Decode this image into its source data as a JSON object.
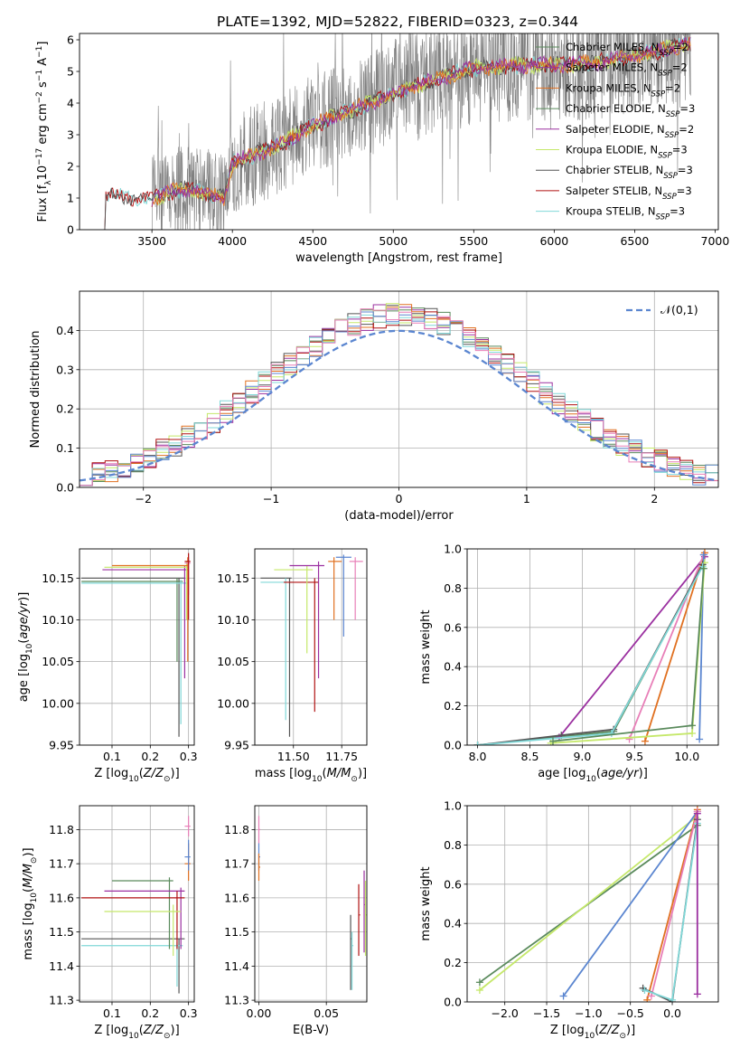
{
  "title": "PLATE=1392, MJD=52822, FIBERID=0323, z=0.344",
  "models": [
    {
      "name": "Chabrier MILES",
      "nssp": "2",
      "color": "#5a8a5c"
    },
    {
      "name": "Salpeter MILES",
      "nssp": "2",
      "color": "#9b30a0"
    },
    {
      "name": "Kroupa MILES",
      "nssp": "2",
      "color": "#e07020"
    },
    {
      "name": "Chabrier ELODIE",
      "nssp": "3",
      "color": "#5a8a5c"
    },
    {
      "name": "Salpeter ELODIE",
      "nssp": "2",
      "color": "#9b30a0"
    },
    {
      "name": "Kroupa ELODIE",
      "nssp": "3",
      "color": "#c5e86a"
    },
    {
      "name": "Chabrier STELIB",
      "nssp": "3",
      "color": "#555555"
    },
    {
      "name": "Salpeter STELIB",
      "nssp": "3",
      "color": "#b01010"
    },
    {
      "name": "Kroupa STELIB",
      "nssp": "3",
      "color": "#80d8d8"
    }
  ],
  "chart_data": [
    {
      "id": "spectrum",
      "type": "line",
      "xlabel": "wavelength [Angstrom, rest frame]",
      "ylabel": "Flux [f_λ 10^-17 erg cm^-2 s^-1 A^-1]",
      "xlim": [
        3050,
        7020
      ],
      "ylim": [
        0,
        6.2
      ],
      "xticks": [
        3500,
        4000,
        4500,
        5000,
        5500,
        6000,
        6500,
        7000
      ],
      "yticks": [
        0,
        1,
        2,
        3,
        4,
        5,
        6
      ],
      "data_color": "#808080",
      "continuum": [
        [
          3200,
          1.05
        ],
        [
          3500,
          1.0
        ],
        [
          3700,
          1.3
        ],
        [
          3950,
          1.0
        ],
        [
          4000,
          2.1
        ],
        [
          4300,
          2.7
        ],
        [
          4500,
          3.3
        ],
        [
          4800,
          3.9
        ],
        [
          5000,
          4.3
        ],
        [
          5300,
          4.8
        ],
        [
          5500,
          5.1
        ],
        [
          5800,
          5.2
        ],
        [
          6000,
          5.2
        ],
        [
          6300,
          5.3
        ],
        [
          6600,
          5.6
        ],
        [
          6850,
          5.9
        ]
      ]
    },
    {
      "id": "residuals",
      "type": "line",
      "xlabel": "(data-model)/error",
      "ylabel": "Normed distribution",
      "xlim": [
        -2.5,
        2.5
      ],
      "ylim": [
        0,
        0.5
      ],
      "xticks": [
        -2,
        -1,
        0,
        1,
        2
      ],
      "yticks": [
        0.0,
        0.1,
        0.2,
        0.3,
        0.4
      ],
      "normal_label": "𝒩(0,1)",
      "normal_color": "#5b86d0",
      "grid": true
    },
    {
      "id": "age-vs-z",
      "type": "scatter",
      "xlabel": "Z [log10(Z/Z⊙)]",
      "ylabel": "age  [log10(age/yr)]",
      "xlim": [
        0.015,
        0.315
      ],
      "ylim": [
        9.95,
        10.185
      ],
      "xticks": [
        0.1,
        0.2,
        0.3
      ],
      "yticks": [
        9.95,
        10.0,
        10.05,
        10.1,
        10.15
      ],
      "grid": true
    },
    {
      "id": "age-vs-mass",
      "type": "scatter",
      "xlabel": "mass [log10(M/M⊙)]",
      "ylabel": "",
      "xlim": [
        11.3,
        11.88
      ],
      "ylim": [
        9.95,
        10.185
      ],
      "xticks": [
        11.5,
        11.75
      ],
      "yticks": [
        9.95,
        10.0,
        10.05,
        10.1,
        10.15
      ],
      "grid": true
    },
    {
      "id": "weight-vs-age",
      "type": "line",
      "xlabel": "age  [log10(age/yr)]",
      "ylabel": "mass weight",
      "xlim": [
        7.9,
        10.3
      ],
      "ylim": [
        0,
        1.0
      ],
      "xticks": [
        8.0,
        8.5,
        9.0,
        9.5,
        10.0
      ],
      "yticks": [
        0.0,
        0.2,
        0.4,
        0.6,
        0.8,
        1.0
      ],
      "grid": true,
      "series": [
        {
          "color": "#5a8a5c",
          "points": [
            [
              8.0,
              0.0
            ],
            [
              9.3,
              0.07
            ],
            [
              10.15,
              0.92
            ]
          ]
        },
        {
          "color": "#9b30a0",
          "points": [
            [
              8.78,
              0.04
            ],
            [
              10.17,
              0.96
            ]
          ]
        },
        {
          "color": "#e07020",
          "points": [
            [
              9.6,
              0.02
            ],
            [
              10.17,
              0.98
            ]
          ]
        },
        {
          "color": "#e87fb8",
          "points": [
            [
              9.45,
              0.03
            ],
            [
              10.16,
              0.97
            ]
          ]
        },
        {
          "color": "#5b86d0",
          "points": [
            [
              10.12,
              0.03
            ],
            [
              10.16,
              0.97
            ]
          ]
        },
        {
          "color": "#c5e86a",
          "points": [
            [
              8.7,
              0.01
            ],
            [
              10.05,
              0.06
            ],
            [
              10.17,
              0.93
            ]
          ]
        },
        {
          "color": "#555555",
          "points": [
            [
              8.0,
              0.0
            ],
            [
              8.8,
              0.05
            ],
            [
              9.3,
              0.08
            ],
            [
              10.15,
              0.92
            ]
          ]
        },
        {
          "color": "#80d8d8",
          "points": [
            [
              8.0,
              0.0
            ],
            [
              9.28,
              0.06
            ],
            [
              10.15,
              0.91
            ]
          ]
        },
        {
          "color": "#5a8a5c",
          "points": [
            [
              8.72,
              0.02
            ],
            [
              10.05,
              0.1
            ],
            [
              10.16,
              0.9
            ]
          ]
        }
      ]
    },
    {
      "id": "mass-vs-z",
      "type": "scatter",
      "xlabel": "Z [log10(Z/Z⊙)]",
      "ylabel": "mass [log10(M/M⊙)]",
      "xlim": [
        0.015,
        0.315
      ],
      "ylim": [
        11.295,
        11.87
      ],
      "xticks": [
        0.1,
        0.2,
        0.3
      ],
      "yticks": [
        11.3,
        11.4,
        11.5,
        11.6,
        11.7,
        11.8
      ],
      "grid": true
    },
    {
      "id": "mass-vs-ebv",
      "type": "scatter",
      "xlabel": "E(B-V)",
      "ylabel": "",
      "xlim": [
        -0.003,
        0.08
      ],
      "ylim": [
        11.295,
        11.87
      ],
      "xticks": [
        0.0,
        0.05
      ],
      "yticks": [
        11.3,
        11.4,
        11.5,
        11.6,
        11.7,
        11.8
      ],
      "grid": true
    },
    {
      "id": "weight-vs-z",
      "type": "line",
      "xlabel": "Z [log10(Z/Z⊙)]",
      "ylabel": "mass weight",
      "xlim": [
        -2.45,
        0.55
      ],
      "ylim": [
        0,
        1.0
      ],
      "xticks": [
        -2.0,
        -1.5,
        -1.0,
        -0.5,
        0.0
      ],
      "yticks": [
        0.0,
        0.2,
        0.4,
        0.6,
        0.8,
        1.0
      ],
      "grid": true,
      "series": [
        {
          "color": "#5a8a5c",
          "points": [
            [
              -2.3,
              0.1
            ],
            [
              0.3,
              0.9
            ]
          ]
        },
        {
          "color": "#c5e86a",
          "points": [
            [
              -2.3,
              0.06
            ],
            [
              0.28,
              0.94
            ]
          ]
        },
        {
          "color": "#5b86d0",
          "points": [
            [
              -1.3,
              0.03
            ],
            [
              0.3,
              0.97
            ]
          ]
        },
        {
          "color": "#e07020",
          "points": [
            [
              -0.3,
              0.01
            ],
            [
              0.3,
              0.98
            ]
          ]
        },
        {
          "color": "#e87fb8",
          "points": [
            [
              -0.25,
              0.03
            ],
            [
              0.3,
              0.97
            ]
          ]
        },
        {
          "color": "#555555",
          "points": [
            [
              -0.35,
              0.07
            ],
            [
              0.0,
              0.0
            ],
            [
              0.3,
              0.93
            ]
          ]
        },
        {
          "color": "#80d8d8",
          "points": [
            [
              -0.33,
              0.06
            ],
            [
              0.0,
              0.01
            ],
            [
              0.3,
              0.91
            ]
          ]
        },
        {
          "color": "#9b30a0",
          "points": [
            [
              0.3,
              0.04
            ],
            [
              0.3,
              0.96
            ]
          ]
        }
      ]
    }
  ]
}
